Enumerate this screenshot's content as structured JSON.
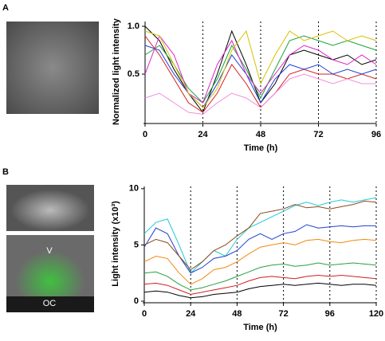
{
  "panels": [
    {
      "label": "A"
    },
    {
      "label": "B",
      "image_labels": [
        "V",
        "OC"
      ]
    }
  ],
  "chart_data": [
    {
      "type": "line",
      "ylabel": "Normalized light intensity",
      "xlabel": "Time (h)",
      "x": [
        0,
        6,
        12,
        18,
        24,
        30,
        36,
        42,
        48,
        54,
        60,
        66,
        72,
        78,
        84,
        90,
        96
      ],
      "xlim": [
        0,
        96
      ],
      "xticks": [
        0,
        24,
        48,
        72,
        96
      ],
      "ylim": [
        0,
        1.05
      ],
      "yticks": [
        0.5,
        {
          "value": 1,
          "label": "1.0"
        }
      ],
      "grid": "x-dashed",
      "series": [
        {
          "color": "#000000",
          "values": [
            1.0,
            0.85,
            0.55,
            0.3,
            0.1,
            0.5,
            0.95,
            0.6,
            0.2,
            0.4,
            0.7,
            0.75,
            0.7,
            0.65,
            0.7,
            0.6,
            0.65
          ]
        },
        {
          "color": "#d62020",
          "values": [
            0.9,
            0.7,
            0.45,
            0.2,
            0.1,
            0.3,
            0.6,
            0.4,
            0.15,
            0.3,
            0.5,
            0.55,
            0.5,
            0.5,
            0.45,
            0.5,
            0.45
          ]
        },
        {
          "color": "#1f3fd6",
          "values": [
            0.8,
            0.75,
            0.5,
            0.3,
            0.15,
            0.4,
            0.7,
            0.5,
            0.2,
            0.45,
            0.6,
            0.55,
            0.6,
            0.5,
            0.55,
            0.5,
            0.55
          ]
        },
        {
          "color": "#1aa33a",
          "values": [
            0.7,
            0.8,
            0.6,
            0.35,
            0.2,
            0.45,
            0.8,
            0.55,
            0.25,
            0.55,
            0.85,
            0.9,
            0.85,
            0.8,
            0.85,
            0.8,
            0.75
          ]
        },
        {
          "color": "#e020c8",
          "values": [
            0.5,
            0.9,
            0.7,
            0.3,
            0.2,
            0.6,
            0.85,
            0.5,
            0.3,
            0.5,
            0.7,
            0.8,
            0.75,
            0.65,
            0.6,
            0.7,
            0.6
          ]
        },
        {
          "color": "#f090d8",
          "values": [
            0.25,
            0.3,
            0.2,
            0.1,
            0.08,
            0.2,
            0.3,
            0.25,
            0.15,
            0.3,
            0.45,
            0.5,
            0.45,
            0.4,
            0.45,
            0.4,
            0.4
          ]
        },
        {
          "color": "#d8c000",
          "values": [
            0.95,
            0.9,
            0.6,
            0.3,
            0.15,
            0.35,
            0.75,
            0.95,
            0.4,
            0.7,
            0.95,
            0.85,
            0.9,
            0.95,
            0.85,
            0.9,
            0.85
          ]
        }
      ]
    },
    {
      "type": "line",
      "ylabel": "Light intensity (x10³)",
      "xlabel": "Time (h)",
      "x": [
        0,
        6,
        12,
        18,
        24,
        30,
        36,
        42,
        48,
        54,
        60,
        66,
        72,
        78,
        84,
        90,
        96,
        102,
        108,
        114,
        120
      ],
      "xlim": [
        0,
        120
      ],
      "xticks": [
        0,
        24,
        48,
        72,
        96,
        120
      ],
      "ylim": [
        0,
        10.2
      ],
      "yticks": [
        0,
        5,
        10
      ],
      "grid": "x-dashed",
      "series": [
        {
          "color": "#20c8d8",
          "values": [
            6,
            7,
            7.3,
            5,
            2.5,
            3.5,
            4.5,
            4,
            5.5,
            6.5,
            7,
            7.5,
            8,
            8.5,
            8.8,
            8.5,
            8.8,
            9,
            8.8,
            9,
            9.2
          ]
        },
        {
          "color": "#2040d0",
          "values": [
            4.8,
            6.5,
            6,
            4,
            2.5,
            3,
            3.8,
            4,
            4.5,
            5.5,
            6,
            5.5,
            6,
            6.2,
            6.8,
            6.5,
            6.6,
            6.7,
            6.6,
            6.7,
            6.7
          ]
        },
        {
          "color": "#f08a10",
          "values": [
            3.5,
            4,
            3.8,
            2.5,
            1.5,
            2,
            2.8,
            3,
            3.5,
            4.2,
            4.8,
            5,
            5.2,
            5,
            5.4,
            5.5,
            5.3,
            5.2,
            5.4,
            5.5,
            5.4
          ]
        },
        {
          "color": "#28a040",
          "values": [
            2.5,
            2.6,
            2.2,
            1.5,
            1,
            1.2,
            1.5,
            1.8,
            2.2,
            2.6,
            3,
            3.2,
            3.3,
            3.1,
            3.2,
            3.4,
            3.2,
            3.3,
            3.4,
            3.3,
            3.2
          ]
        },
        {
          "color": "#d02020",
          "values": [
            1.5,
            1.6,
            1.4,
            1,
            0.6,
            0.8,
            1,
            1.2,
            1.4,
            1.8,
            2.1,
            2.2,
            2.1,
            2,
            2.2,
            2.3,
            2.2,
            2.3,
            2.2,
            2.1,
            2
          ]
        },
        {
          "color": "#8a4a20",
          "values": [
            5,
            5.5,
            5.2,
            4,
            2.8,
            3.5,
            4.5,
            5,
            5.8,
            6.5,
            7.8,
            8,
            8.2,
            8.6,
            8.3,
            8.4,
            8.2,
            8.4,
            8.6,
            8.9,
            8.8
          ]
        },
        {
          "color": "#000000",
          "values": [
            0.8,
            0.9,
            0.8,
            0.5,
            0.3,
            0.4,
            0.6,
            0.7,
            0.8,
            1.1,
            1.3,
            1.4,
            1.5,
            1.4,
            1.5,
            1.6,
            1.5,
            1.4,
            1.5,
            1.5,
            1.4
          ]
        }
      ]
    }
  ]
}
